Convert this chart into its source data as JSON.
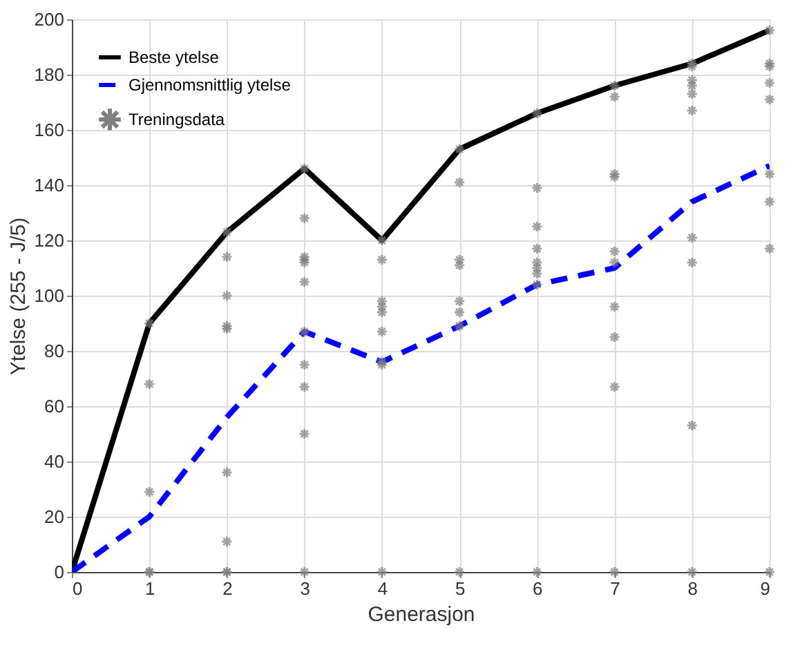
{
  "chart_data": {
    "type": "line",
    "xlabel": "Generasjon",
    "ylabel": "Ytelse (255 - J/5)",
    "xlim": [
      0,
      9
    ],
    "xticks": [
      0,
      1,
      2,
      3,
      4,
      5,
      6,
      7,
      8,
      9
    ],
    "ylim": [
      0,
      200
    ],
    "yticks": [
      0,
      20,
      40,
      60,
      80,
      100,
      120,
      140,
      160,
      180,
      200
    ],
    "grid": true,
    "legend": "top left",
    "series": [
      {
        "name": "Beste ytelse",
        "color": "#000000",
        "line_style": "solid",
        "x": [
          0,
          1,
          2,
          3,
          4,
          5,
          6,
          7,
          8,
          9
        ],
        "values": [
          0,
          90,
          123,
          146,
          120,
          153,
          166,
          176,
          184,
          196
        ]
      },
      {
        "name": "Gjennomsnittlig ytelse",
        "color": "#0000ff",
        "line_style": "dashed",
        "x": [
          0,
          1,
          2,
          3,
          4,
          5,
          6,
          7,
          8,
          9
        ],
        "values": [
          0,
          20,
          56,
          87,
          76,
          89,
          104,
          110,
          134,
          147
        ]
      },
      {
        "name": "Treningsdata",
        "color": "#808080",
        "type": "scatter",
        "marker": "cross",
        "x": [
          1,
          1,
          1,
          1,
          1,
          2,
          2,
          2,
          2,
          2,
          2,
          2,
          2,
          2,
          3,
          3,
          3,
          3,
          3,
          3,
          3,
          3,
          3,
          3,
          3,
          4,
          4,
          4,
          4,
          4,
          4,
          4,
          4,
          4,
          5,
          5,
          5,
          5,
          5,
          5,
          5,
          5,
          6,
          6,
          6,
          6,
          6,
          6,
          6,
          6,
          6,
          7,
          7,
          7,
          7,
          7,
          7,
          7,
          7,
          7,
          7,
          8,
          8,
          8,
          8,
          8,
          8,
          8,
          8,
          8,
          8,
          9,
          9,
          9,
          9,
          9,
          9,
          9,
          9,
          9
        ],
        "values": [
          90,
          68,
          29,
          0,
          0,
          123,
          114,
          100,
          89,
          88,
          36,
          11,
          0,
          0,
          146,
          128,
          114,
          113,
          112,
          105,
          87,
          75,
          67,
          50,
          0,
          120,
          113,
          98,
          96,
          94,
          87,
          76,
          75,
          0,
          153,
          141,
          113,
          111,
          98,
          94,
          89,
          0,
          166,
          139,
          125,
          117,
          112,
          110,
          108,
          104,
          0,
          176,
          172,
          144,
          143,
          116,
          112,
          96,
          85,
          67,
          0,
          184,
          183,
          178,
          176,
          173,
          167,
          121,
          112,
          53,
          0,
          196,
          184,
          183,
          177,
          171,
          144,
          134,
          117,
          0
        ]
      }
    ]
  }
}
